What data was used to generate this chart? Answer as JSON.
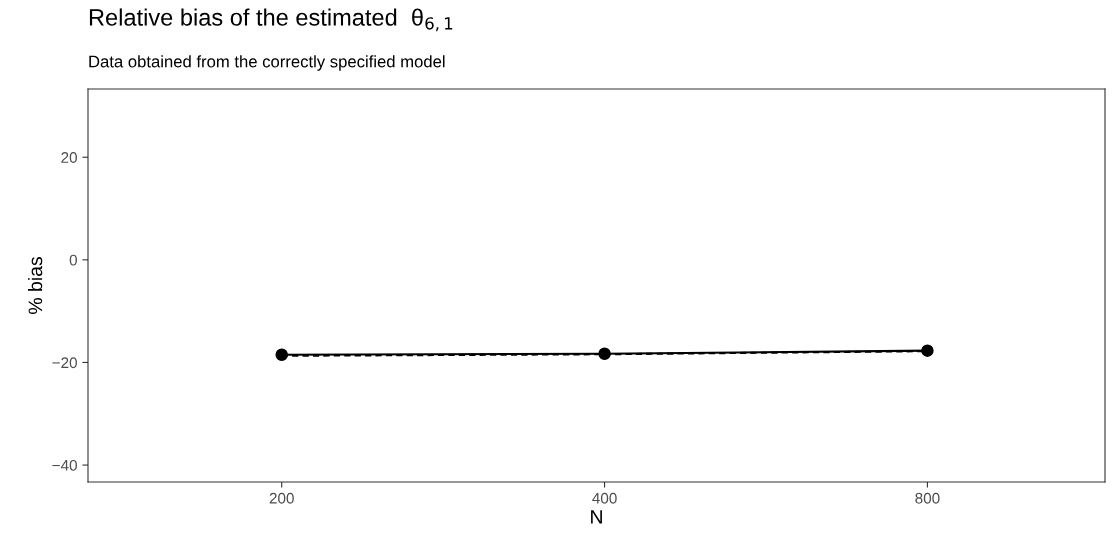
{
  "chart_data": {
    "type": "line",
    "title": "Relative bias of the estimated  θ$_{6,1}$",
    "subtitle": "Data obtained from the correctly specified model",
    "xlabel": "N",
    "ylabel": "% bias",
    "categories": [
      "200",
      "400",
      "800"
    ],
    "series": [
      {
        "color": "#000000",
        "values": [
          -18.5,
          -18.3,
          -17.7
        ],
        "line_style": "solid",
        "marker": "circle"
      },
      {
        "color": "#000000",
        "values": [
          -18.7,
          -18.4,
          -17.8
        ],
        "line_style": "dashed",
        "marker": "none"
      }
    ],
    "ylim": [
      -43.3,
      33.3
    ],
    "yticks": [
      {
        "value": -40,
        "label": "−40"
      },
      {
        "value": -20,
        "label": "−20"
      },
      0,
      20
    ],
    "grid": false,
    "legend": false
  }
}
